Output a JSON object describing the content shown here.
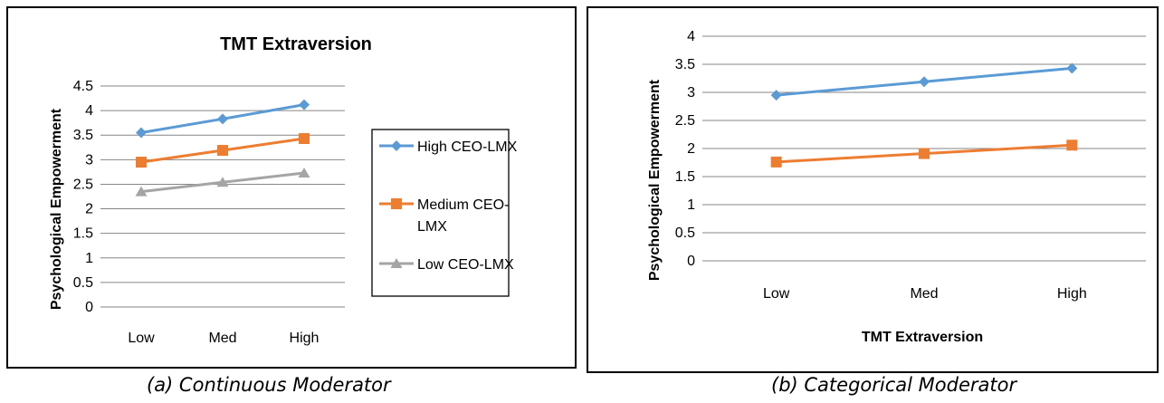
{
  "captions": {
    "a": "(a) Continuous Moderator",
    "b": "(b) Categorical Moderator"
  },
  "chart_data": [
    {
      "type": "line",
      "title": "TMT Extraversion",
      "xlabel": "",
      "ylabel": "Psychological Empowerment",
      "categories": [
        "Low",
        "Med",
        "High"
      ],
      "ylim": [
        0,
        4.5
      ],
      "ystep": 0.5,
      "yticks": [
        "0",
        "0.5",
        "1",
        "1.5",
        "2",
        "2.5",
        "3",
        "3.5",
        "4",
        "4.5"
      ],
      "grid": true,
      "legend": "right",
      "series": [
        {
          "name": "High CEO-LMX",
          "values": [
            3.55,
            3.83,
            4.12
          ],
          "color": "#5b9bd5",
          "marker": "diamond"
        },
        {
          "name": "Medium CEO-LMX",
          "values": [
            2.95,
            3.19,
            3.43
          ],
          "color": "#ed7d31",
          "marker": "square"
        },
        {
          "name": "Low CEO-LMX",
          "values": [
            2.35,
            2.54,
            2.73
          ],
          "color": "#a5a5a5",
          "marker": "triangle"
        }
      ]
    },
    {
      "type": "line",
      "title": "",
      "xlabel": "TMT Extraversion",
      "ylabel": "Psychological Empowerment",
      "categories": [
        "Low",
        "Med",
        "High"
      ],
      "ylim": [
        0,
        4
      ],
      "ystep": 0.5,
      "yticks": [
        "0",
        "0.5",
        "1",
        "1.5",
        "2",
        "2.5",
        "3",
        "3.5",
        "4"
      ],
      "grid": true,
      "legend": "none",
      "series": [
        {
          "values": [
            2.95,
            3.19,
            3.43
          ],
          "color": "#5b9bd5",
          "marker": "diamond"
        },
        {
          "values": [
            1.76,
            1.91,
            2.06
          ],
          "color": "#ed7d31",
          "marker": "square"
        }
      ]
    }
  ]
}
